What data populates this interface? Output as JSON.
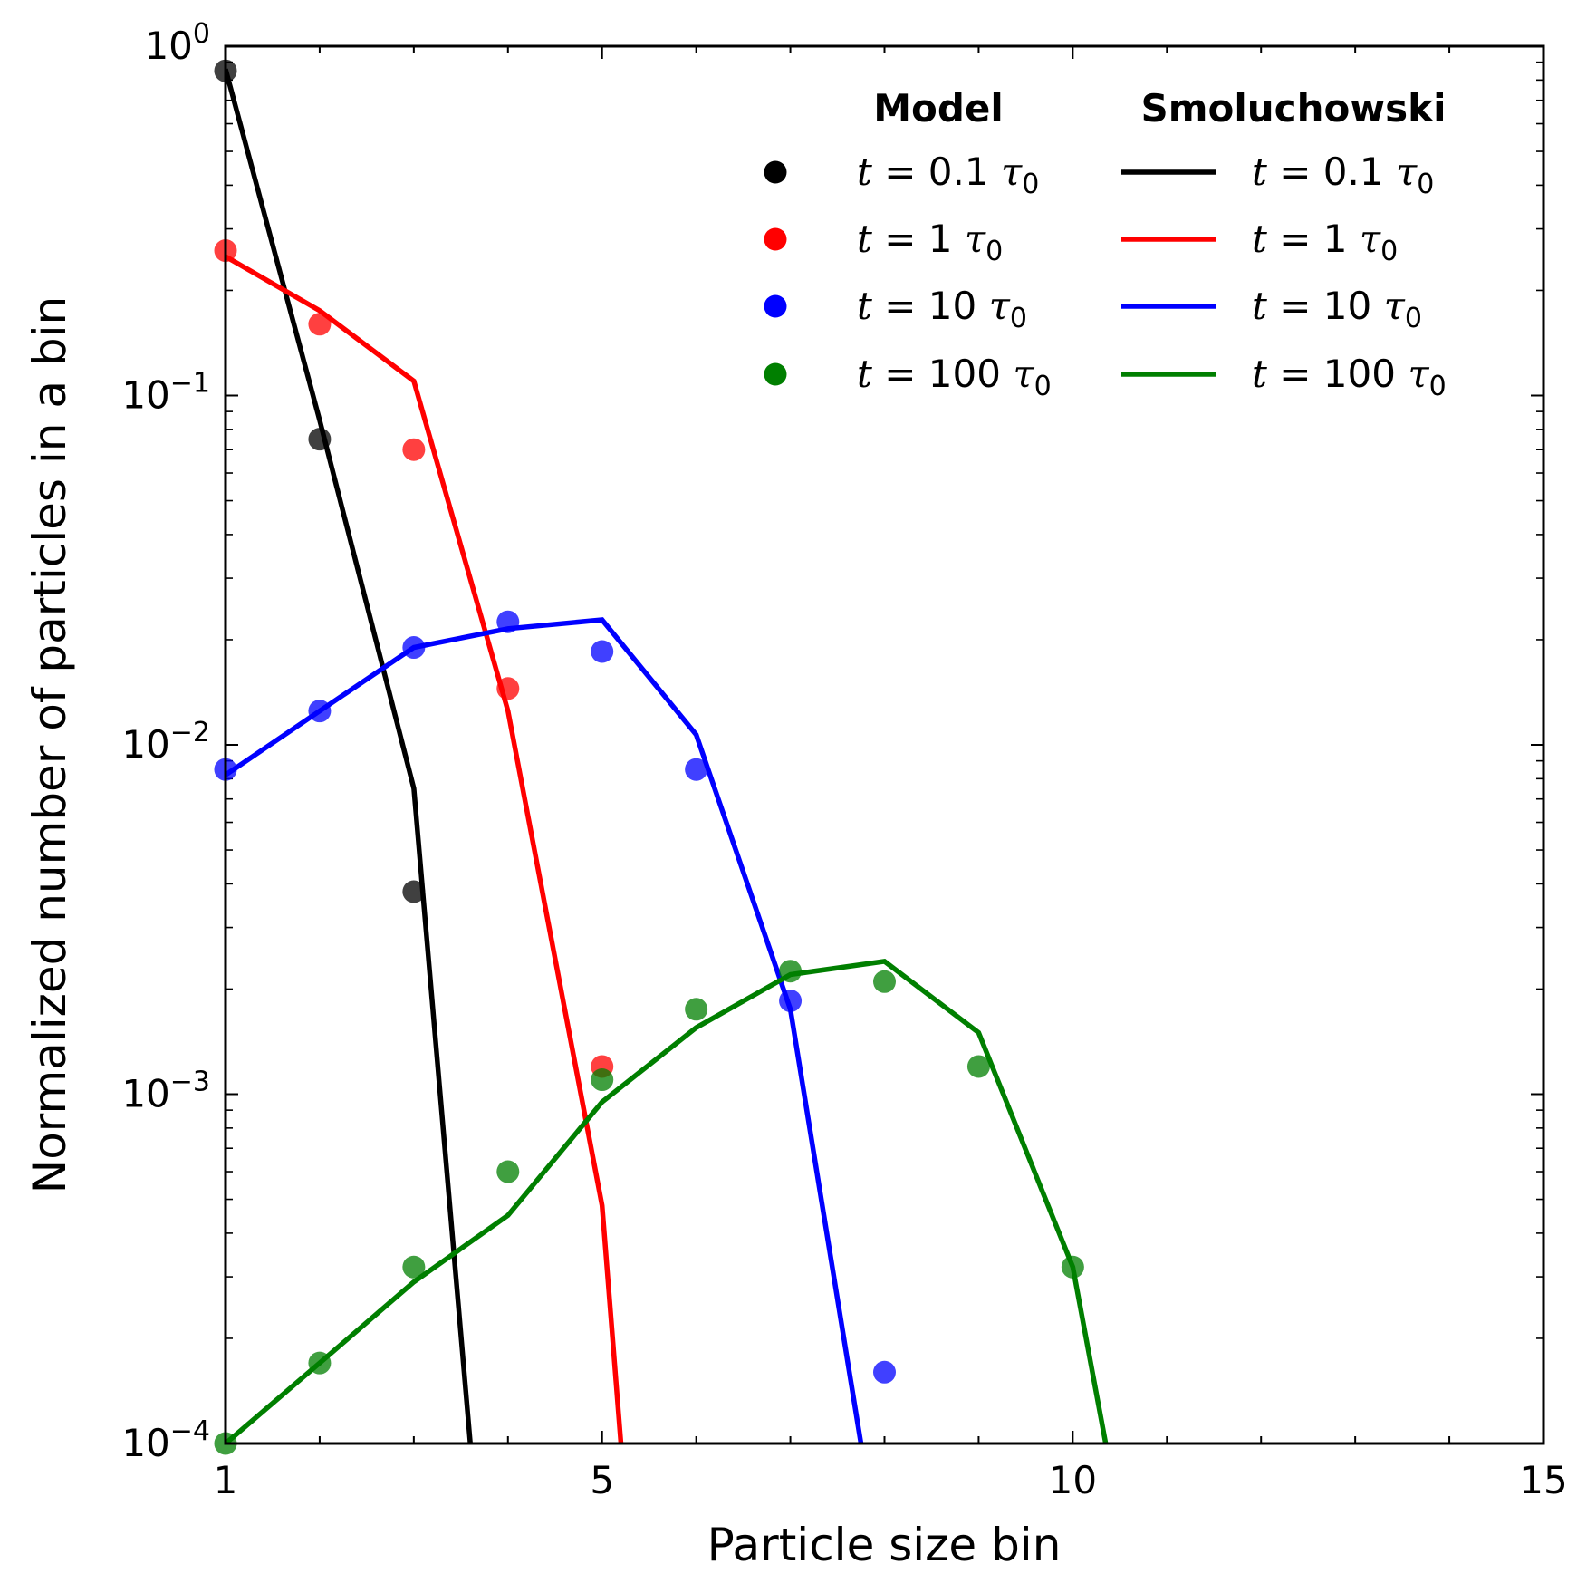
{
  "chart_data": {
    "type": "line",
    "title": "",
    "xlabel": "Particle size bin",
    "ylabel": "Normalized number of particles in a bin",
    "xscale": "linear",
    "yscale": "log",
    "xlim": [
      1,
      15
    ],
    "ylim": [
      0.0001,
      1
    ],
    "xticks": [
      1,
      5,
      10,
      15
    ],
    "xtick_labels": [
      "1",
      "5",
      "10",
      "15"
    ],
    "yticks": [
      {
        "value": 1,
        "base": "10",
        "exp": "0"
      },
      {
        "value": 0.1,
        "base": "10",
        "exp": "−1"
      },
      {
        "value": 0.01,
        "base": "10",
        "exp": "−2"
      },
      {
        "value": 0.001,
        "base": "10",
        "exp": "−3"
      },
      {
        "value": 0.0001,
        "base": "10",
        "exp": "−4"
      }
    ],
    "grid": false,
    "legend_position": "top-right",
    "legend": {
      "model_header": "Model",
      "smol_header": "Smoluchowski"
    },
    "series": [
      {
        "name": "t = 0.1 τ0",
        "label_prefix": "t",
        "label_eq": " = ",
        "label_value": "0.1 ",
        "label_tau": "τ",
        "label_sub": "0",
        "color": "#000000",
        "model_points": {
          "x": [
            1,
            2,
            3
          ],
          "y": [
            0.85,
            0.075,
            0.0038
          ]
        },
        "smoluchowski": {
          "x": [
            1,
            2,
            3,
            3.6
          ],
          "y": [
            0.86,
            0.085,
            0.0075,
            0.0001
          ]
        }
      },
      {
        "name": "t = 1 τ0",
        "label_prefix": "t",
        "label_eq": " = ",
        "label_value": "1 ",
        "label_tau": "τ",
        "label_sub": "0",
        "color": "#ff0000",
        "model_points": {
          "x": [
            1,
            2,
            3,
            4,
            5
          ],
          "y": [
            0.26,
            0.16,
            0.07,
            0.0145,
            0.0012
          ]
        },
        "smoluchowski": {
          "x": [
            1,
            2,
            3,
            4,
            5,
            5.2
          ],
          "y": [
            0.25,
            0.175,
            0.11,
            0.0125,
            0.00048,
            0.0001
          ]
        }
      },
      {
        "name": "t = 10 τ0",
        "label_prefix": "t",
        "label_eq": " = ",
        "label_value": "10 ",
        "label_tau": "τ",
        "label_sub": "0",
        "color": "#0000ff",
        "model_points": {
          "x": [
            1,
            2,
            3,
            4,
            5,
            6,
            7,
            8
          ],
          "y": [
            0.0085,
            0.0125,
            0.019,
            0.0225,
            0.0185,
            0.0085,
            0.00185,
            0.00016
          ]
        },
        "smoluchowski": {
          "x": [
            1,
            2,
            3,
            4,
            5,
            6,
            7,
            7.75
          ],
          "y": [
            0.0082,
            0.0125,
            0.019,
            0.0215,
            0.0228,
            0.0107,
            0.00175,
            0.0001
          ]
        }
      },
      {
        "name": "t = 100 τ0",
        "label_prefix": "t",
        "label_eq": " = ",
        "label_value": "100 ",
        "label_tau": "τ",
        "label_sub": "0",
        "color": "#007f00",
        "model_points": {
          "x": [
            1,
            2,
            3,
            4,
            5,
            6,
            7,
            8,
            9,
            10
          ],
          "y": [
            0.0001,
            0.00017,
            0.00032,
            0.0006,
            0.0011,
            0.00175,
            0.00225,
            0.0021,
            0.0012,
            0.00032
          ]
        },
        "smoluchowski": {
          "x": [
            1,
            2,
            3,
            4,
            5,
            6,
            7,
            8,
            9,
            10,
            10.35
          ],
          "y": [
            0.0001,
            0.00017,
            0.00029,
            0.00045,
            0.00095,
            0.00155,
            0.0022,
            0.0024,
            0.0015,
            0.00032,
            0.0001
          ]
        }
      }
    ]
  }
}
